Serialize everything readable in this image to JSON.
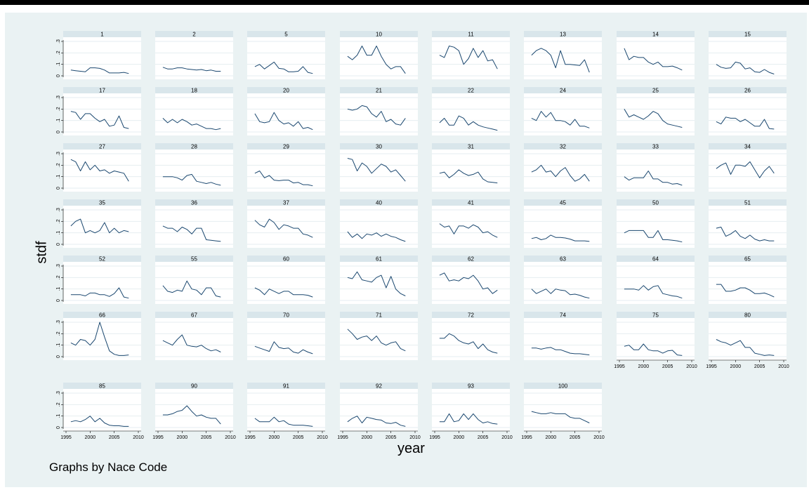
{
  "chart_data": {
    "type": "line",
    "ylabel": "stdf",
    "xlabel": "year",
    "note": "Graphs by Nace Code",
    "x": [
      1996,
      1997,
      1998,
      1999,
      2000,
      2001,
      2002,
      2003,
      2004,
      2005,
      2006,
      2007,
      2008
    ],
    "xlim": [
      1995,
      2010
    ],
    "ylim": [
      0,
      0.3
    ],
    "xticks": [
      "1995",
      "2000",
      "2005",
      "2010"
    ],
    "yticks": [
      "0",
      ".1",
      ".2",
      ".3"
    ],
    "line_color": "#1a476f",
    "header_color": "#d9e6eb",
    "panels": [
      {
        "label": "1",
        "values": [
          0.05,
          0.045,
          0.04,
          0.035,
          0.07,
          0.07,
          0.065,
          0.05,
          0.025,
          0.025,
          0.025,
          0.03,
          0.02
        ]
      },
      {
        "label": "2",
        "values": [
          0.075,
          0.06,
          0.06,
          0.07,
          0.07,
          0.06,
          0.055,
          0.05,
          0.055,
          0.045,
          0.05,
          0.04,
          0.04
        ]
      },
      {
        "label": "5",
        "values": [
          0.08,
          0.1,
          0.06,
          0.09,
          0.12,
          0.065,
          0.06,
          0.035,
          0.035,
          0.04,
          0.08,
          0.03,
          0.02
        ]
      },
      {
        "label": "10",
        "values": [
          0.17,
          0.14,
          0.18,
          0.26,
          0.18,
          0.18,
          0.26,
          0.17,
          0.1,
          0.06,
          0.08,
          0.08,
          0.02
        ]
      },
      {
        "label": "11",
        "values": [
          0.18,
          0.16,
          0.26,
          0.25,
          0.22,
          0.1,
          0.15,
          0.24,
          0.16,
          0.22,
          0.13,
          0.14,
          0.06
        ]
      },
      {
        "label": "13",
        "values": [
          0.18,
          0.22,
          0.24,
          0.22,
          0.18,
          0.07,
          0.22,
          0.1,
          0.1,
          0.095,
          0.09,
          0.14,
          0.03
        ]
      },
      {
        "label": "14",
        "values": [
          0.24,
          0.14,
          0.17,
          0.16,
          0.16,
          0.12,
          0.1,
          0.12,
          0.08,
          0.08,
          0.085,
          0.07,
          0.05
        ]
      },
      {
        "label": "15",
        "values": [
          0.1,
          0.075,
          0.065,
          0.07,
          0.12,
          0.11,
          0.06,
          0.07,
          0.035,
          0.03,
          0.055,
          0.03,
          0.015
        ]
      },
      {
        "label": "17",
        "values": [
          0.18,
          0.17,
          0.11,
          0.16,
          0.16,
          0.12,
          0.09,
          0.11,
          0.05,
          0.06,
          0.14,
          0.04,
          0.03
        ]
      },
      {
        "label": "18",
        "values": [
          0.12,
          0.08,
          0.11,
          0.08,
          0.11,
          0.09,
          0.06,
          0.07,
          0.05,
          0.03,
          0.03,
          0.02,
          0.03
        ]
      },
      {
        "label": "20",
        "values": [
          0.16,
          0.09,
          0.08,
          0.09,
          0.17,
          0.1,
          0.07,
          0.08,
          0.05,
          0.09,
          0.03,
          0.04,
          0.02
        ]
      },
      {
        "label": "21",
        "values": [
          0.2,
          0.19,
          0.2,
          0.23,
          0.22,
          0.16,
          0.13,
          0.18,
          0.09,
          0.11,
          0.07,
          0.06,
          0.12
        ]
      },
      {
        "label": "22",
        "values": [
          0.08,
          0.12,
          0.06,
          0.06,
          0.14,
          0.12,
          0.06,
          0.09,
          0.06,
          0.045,
          0.035,
          0.025,
          0.015
        ]
      },
      {
        "label": "24",
        "values": [
          0.12,
          0.1,
          0.18,
          0.13,
          0.17,
          0.1,
          0.1,
          0.09,
          0.06,
          0.11,
          0.05,
          0.05,
          0.035
        ]
      },
      {
        "label": "25",
        "values": [
          0.2,
          0.13,
          0.15,
          0.13,
          0.11,
          0.14,
          0.18,
          0.16,
          0.1,
          0.07,
          0.06,
          0.05,
          0.04
        ]
      },
      {
        "label": "26",
        "values": [
          0.09,
          0.07,
          0.13,
          0.12,
          0.12,
          0.09,
          0.11,
          0.08,
          0.05,
          0.05,
          0.11,
          0.03,
          0.025
        ]
      },
      {
        "label": "27",
        "values": [
          0.25,
          0.23,
          0.15,
          0.23,
          0.16,
          0.2,
          0.15,
          0.16,
          0.13,
          0.15,
          0.14,
          0.13,
          0.06
        ]
      },
      {
        "label": "28",
        "values": [
          0.1,
          0.1,
          0.1,
          0.09,
          0.07,
          0.11,
          0.12,
          0.06,
          0.05,
          0.04,
          0.05,
          0.035,
          0.025
        ]
      },
      {
        "label": "29",
        "values": [
          0.13,
          0.15,
          0.09,
          0.11,
          0.07,
          0.065,
          0.07,
          0.07,
          0.045,
          0.05,
          0.03,
          0.03,
          0.02
        ]
      },
      {
        "label": "30",
        "values": [
          0.26,
          0.25,
          0.15,
          0.22,
          0.19,
          0.13,
          0.17,
          0.21,
          0.19,
          0.14,
          0.16,
          0.11,
          0.06
        ]
      },
      {
        "label": "31",
        "values": [
          0.13,
          0.14,
          0.09,
          0.12,
          0.16,
          0.13,
          0.11,
          0.12,
          0.14,
          0.08,
          0.055,
          0.05,
          0.045
        ]
      },
      {
        "label": "32",
        "values": [
          0.14,
          0.16,
          0.2,
          0.14,
          0.15,
          0.1,
          0.15,
          0.18,
          0.11,
          0.06,
          0.08,
          0.12,
          0.06
        ]
      },
      {
        "label": "33",
        "values": [
          0.1,
          0.07,
          0.09,
          0.09,
          0.09,
          0.15,
          0.08,
          0.08,
          0.05,
          0.05,
          0.035,
          0.04,
          0.025
        ]
      },
      {
        "label": "34",
        "values": [
          0.17,
          0.2,
          0.22,
          0.12,
          0.2,
          0.2,
          0.19,
          0.23,
          0.16,
          0.09,
          0.15,
          0.19,
          0.13
        ]
      },
      {
        "label": "35",
        "values": [
          0.16,
          0.2,
          0.22,
          0.1,
          0.12,
          0.1,
          0.12,
          0.19,
          0.1,
          0.14,
          0.1,
          0.12,
          0.11
        ]
      },
      {
        "label": "36",
        "values": [
          0.16,
          0.14,
          0.14,
          0.11,
          0.15,
          0.13,
          0.09,
          0.14,
          0.14,
          0.04,
          0.035,
          0.03,
          0.025
        ]
      },
      {
        "label": "37",
        "values": [
          0.21,
          0.17,
          0.15,
          0.22,
          0.19,
          0.13,
          0.17,
          0.16,
          0.14,
          0.14,
          0.09,
          0.08,
          0.06
        ]
      },
      {
        "label": "40",
        "values": [
          0.11,
          0.06,
          0.09,
          0.05,
          0.09,
          0.08,
          0.1,
          0.07,
          0.09,
          0.07,
          0.06,
          0.04,
          0.025
        ]
      },
      {
        "label": "41",
        "values": [
          0.18,
          0.15,
          0.16,
          0.09,
          0.16,
          0.16,
          0.14,
          0.17,
          0.15,
          0.1,
          0.11,
          0.08,
          0.06
        ]
      },
      {
        "label": "45",
        "values": [
          0.05,
          0.06,
          0.04,
          0.05,
          0.08,
          0.06,
          0.06,
          0.055,
          0.045,
          0.03,
          0.03,
          0.03,
          0.025
        ]
      },
      {
        "label": "50",
        "values": [
          0.1,
          0.12,
          0.12,
          0.12,
          0.12,
          0.06,
          0.06,
          0.12,
          0.04,
          0.04,
          0.035,
          0.03,
          0.02
        ]
      },
      {
        "label": "51",
        "values": [
          0.14,
          0.15,
          0.07,
          0.09,
          0.12,
          0.07,
          0.05,
          0.08,
          0.045,
          0.03,
          0.04,
          0.03,
          0.03
        ]
      },
      {
        "label": "52",
        "values": [
          0.05,
          0.05,
          0.05,
          0.04,
          0.065,
          0.065,
          0.05,
          0.05,
          0.035,
          0.06,
          0.11,
          0.03,
          0.02
        ]
      },
      {
        "label": "55",
        "values": [
          0.13,
          0.08,
          0.07,
          0.09,
          0.08,
          0.17,
          0.1,
          0.09,
          0.05,
          0.11,
          0.11,
          0.04,
          0.03
        ]
      },
      {
        "label": "60",
        "values": [
          0.11,
          0.09,
          0.05,
          0.1,
          0.08,
          0.06,
          0.08,
          0.08,
          0.05,
          0.05,
          0.05,
          0.045,
          0.03
        ]
      },
      {
        "label": "61",
        "values": [
          0.2,
          0.19,
          0.25,
          0.18,
          0.17,
          0.16,
          0.2,
          0.22,
          0.11,
          0.21,
          0.1,
          0.06,
          0.04
        ]
      },
      {
        "label": "62",
        "values": [
          0.22,
          0.24,
          0.17,
          0.18,
          0.17,
          0.2,
          0.19,
          0.22,
          0.17,
          0.1,
          0.11,
          0.06,
          0.09
        ]
      },
      {
        "label": "63",
        "values": [
          0.1,
          0.06,
          0.08,
          0.1,
          0.06,
          0.1,
          0.09,
          0.085,
          0.05,
          0.055,
          0.045,
          0.03,
          0.02
        ]
      },
      {
        "label": "64",
        "values": [
          0.1,
          0.1,
          0.1,
          0.09,
          0.13,
          0.09,
          0.12,
          0.13,
          0.06,
          0.05,
          0.04,
          0.035,
          0.02
        ]
      },
      {
        "label": "65",
        "values": [
          0.14,
          0.14,
          0.08,
          0.08,
          0.09,
          0.11,
          0.11,
          0.09,
          0.06,
          0.06,
          0.065,
          0.05,
          0.03
        ]
      },
      {
        "label": "66",
        "values": [
          0.12,
          0.1,
          0.15,
          0.14,
          0.1,
          0.15,
          0.3,
          0.17,
          0.05,
          0.02,
          0.01,
          0.01,
          0.015
        ]
      },
      {
        "label": "67",
        "values": [
          0.14,
          0.12,
          0.1,
          0.15,
          0.19,
          0.1,
          0.09,
          0.085,
          0.1,
          0.07,
          0.05,
          0.06,
          0.04
        ]
      },
      {
        "label": "70",
        "values": [
          0.09,
          0.075,
          0.06,
          0.045,
          0.13,
          0.08,
          0.07,
          0.075,
          0.04,
          0.03,
          0.06,
          0.04,
          0.025
        ]
      },
      {
        "label": "71",
        "values": [
          0.24,
          0.2,
          0.15,
          0.17,
          0.18,
          0.14,
          0.18,
          0.12,
          0.1,
          0.12,
          0.13,
          0.07,
          0.05
        ]
      },
      {
        "label": "72",
        "values": [
          0.16,
          0.16,
          0.2,
          0.18,
          0.14,
          0.12,
          0.11,
          0.13,
          0.07,
          0.11,
          0.06,
          0.04,
          0.03
        ]
      },
      {
        "label": "74",
        "values": [
          0.075,
          0.075,
          0.065,
          0.075,
          0.08,
          0.06,
          0.06,
          0.045,
          0.03,
          0.025,
          0.025,
          0.02,
          0.015
        ]
      },
      {
        "label": "75",
        "values": [
          0.09,
          0.1,
          0.06,
          0.06,
          0.11,
          0.06,
          0.05,
          0.05,
          0.03,
          0.05,
          0.055,
          0.015,
          0.01
        ]
      },
      {
        "label": "80",
        "values": [
          0.15,
          0.13,
          0.12,
          0.1,
          0.12,
          0.14,
          0.08,
          0.08,
          0.03,
          0.02,
          0.01,
          0.015,
          0.01
        ]
      },
      {
        "label": "85",
        "values": [
          0.05,
          0.06,
          0.05,
          0.07,
          0.1,
          0.05,
          0.08,
          0.04,
          0.02,
          0.015,
          0.015,
          0.01,
          0.01
        ]
      },
      {
        "label": "90",
        "values": [
          0.11,
          0.11,
          0.12,
          0.14,
          0.15,
          0.19,
          0.14,
          0.1,
          0.11,
          0.09,
          0.08,
          0.08,
          0.03
        ]
      },
      {
        "label": "91",
        "values": [
          0.08,
          0.05,
          0.05,
          0.05,
          0.09,
          0.05,
          0.06,
          0.03,
          0.02,
          0.02,
          0.02,
          0.015,
          0.01
        ]
      },
      {
        "label": "92",
        "values": [
          0.05,
          0.08,
          0.1,
          0.04,
          0.09,
          0.08,
          0.07,
          0.065,
          0.04,
          0.035,
          0.045,
          0.02,
          0.01
        ]
      },
      {
        "label": "93",
        "values": [
          0.05,
          0.05,
          0.12,
          0.05,
          0.06,
          0.12,
          0.07,
          0.12,
          0.07,
          0.04,
          0.05,
          0.035,
          0.03
        ]
      },
      {
        "label": "100",
        "values": [
          0.14,
          0.13,
          0.12,
          0.12,
          0.13,
          0.12,
          0.12,
          0.12,
          0.09,
          0.08,
          0.08,
          0.06,
          0.04
        ]
      }
    ]
  }
}
